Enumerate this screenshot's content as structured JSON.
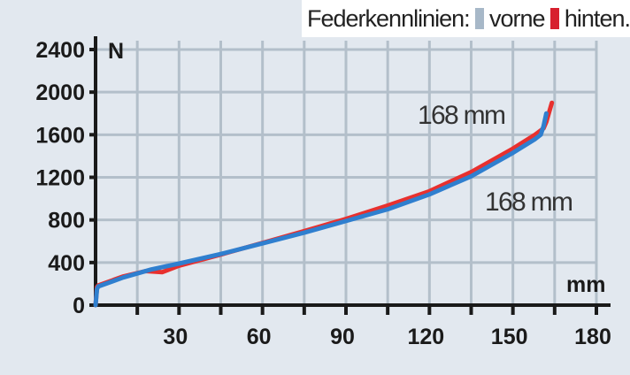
{
  "legend": {
    "title": "Federkennlinien:",
    "items": [
      {
        "label": "vorne",
        "color": "#a7b8c8"
      },
      {
        "label": "hinten.",
        "color": "#d7202e"
      }
    ]
  },
  "chart_data": {
    "type": "line",
    "xlabel": "mm",
    "ylabel": "N",
    "xlim": [
      0,
      180
    ],
    "ylim": [
      0,
      2400
    ],
    "x_ticks": [
      30,
      60,
      90,
      120,
      150,
      180
    ],
    "y_ticks": [
      0,
      400,
      800,
      1200,
      1600,
      2000,
      2400
    ],
    "grid": true,
    "series": [
      {
        "name": "vorne",
        "color": "#2f7fcf",
        "points": [
          [
            0,
            0
          ],
          [
            0.5,
            150
          ],
          [
            1,
            175
          ],
          [
            10,
            260
          ],
          [
            20,
            335
          ],
          [
            30,
            390
          ],
          [
            45,
            480
          ],
          [
            60,
            580
          ],
          [
            75,
            680
          ],
          [
            90,
            790
          ],
          [
            105,
            900
          ],
          [
            120,
            1040
          ],
          [
            135,
            1210
          ],
          [
            150,
            1430
          ],
          [
            158,
            1560
          ],
          [
            160,
            1600
          ],
          [
            161,
            1680
          ],
          [
            162,
            1800
          ]
        ]
      },
      {
        "name": "hinten.",
        "color": "#e8302e",
        "points": [
          [
            0,
            0
          ],
          [
            0.5,
            170
          ],
          [
            1,
            185
          ],
          [
            10,
            270
          ],
          [
            18,
            320
          ],
          [
            24,
            310
          ],
          [
            30,
            370
          ],
          [
            45,
            475
          ],
          [
            60,
            585
          ],
          [
            75,
            695
          ],
          [
            90,
            810
          ],
          [
            105,
            935
          ],
          [
            120,
            1070
          ],
          [
            135,
            1250
          ],
          [
            150,
            1470
          ],
          [
            158,
            1600
          ],
          [
            161,
            1660
          ],
          [
            162,
            1720
          ],
          [
            164,
            1900
          ]
        ]
      }
    ],
    "annotations": [
      {
        "text": "168 mm",
        "series": "hinten."
      },
      {
        "text": "168 mm",
        "series": "vorne"
      }
    ]
  }
}
